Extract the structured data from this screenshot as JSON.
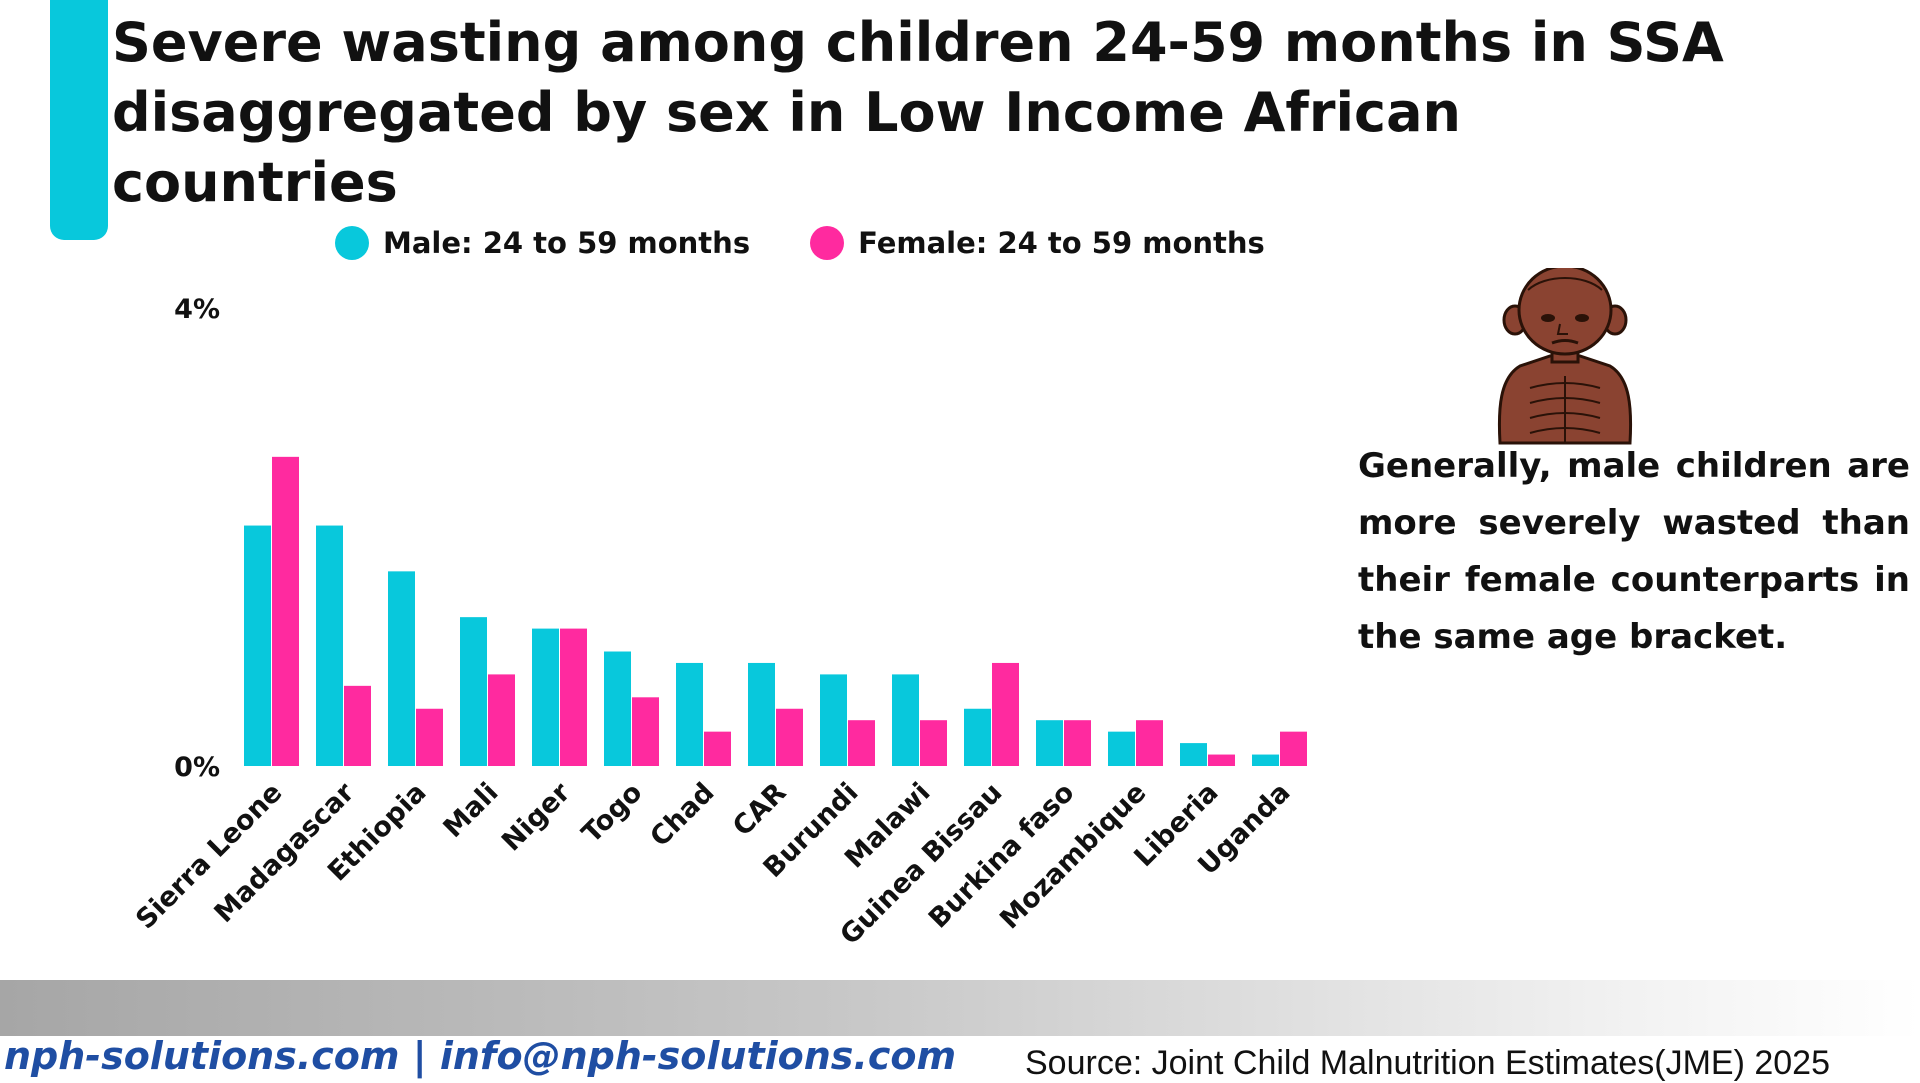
{
  "header": {
    "title": "Severe wasting among children 24-59 months in SSA disaggregated by sex in Low Income African countries"
  },
  "colors": {
    "accent": "#08c8dc",
    "male": "#08c8dc",
    "female": "#ff2a9f",
    "link": "#1f4ea3"
  },
  "chart_data": {
    "type": "bar",
    "title": "",
    "xlabel": "",
    "ylabel": "",
    "ylim": [
      0,
      4
    ],
    "y_ticks": [
      "0%",
      "4%"
    ],
    "legend_position": "top",
    "grid": false,
    "categories": [
      "Sierra Leone",
      "Madagascar",
      "Ethiopia",
      "Mali",
      "Niger",
      "Togo",
      "Chad",
      "CAR",
      "Burundi",
      "Malawi",
      "Guinea Bissau",
      "Burkina faso",
      "Mozambique",
      "Liberia",
      "Uganda"
    ],
    "series": [
      {
        "name": "Male: 24 to 59 months",
        "color": "#08c8dc",
        "values": [
          2.1,
          2.1,
          1.7,
          1.3,
          1.2,
          1.0,
          0.9,
          0.9,
          0.8,
          0.8,
          0.5,
          0.4,
          0.3,
          0.2,
          0.1
        ]
      },
      {
        "name": "Female: 24 to 59 months",
        "color": "#ff2a9f",
        "values": [
          2.7,
          0.7,
          0.5,
          0.8,
          1.2,
          0.6,
          0.3,
          0.5,
          0.4,
          0.4,
          0.9,
          0.4,
          0.4,
          0.1,
          0.3
        ]
      }
    ]
  },
  "side_note": {
    "text": "Generally, male children are more severely wasted than their female counterparts in the same age bracket.",
    "icon": "malnourished-child-icon"
  },
  "footer": {
    "website": "nph-solutions.com | info@nph-solutions.com",
    "source": "Source: Joint Child Malnutrition Estimates(JME) 2025"
  }
}
